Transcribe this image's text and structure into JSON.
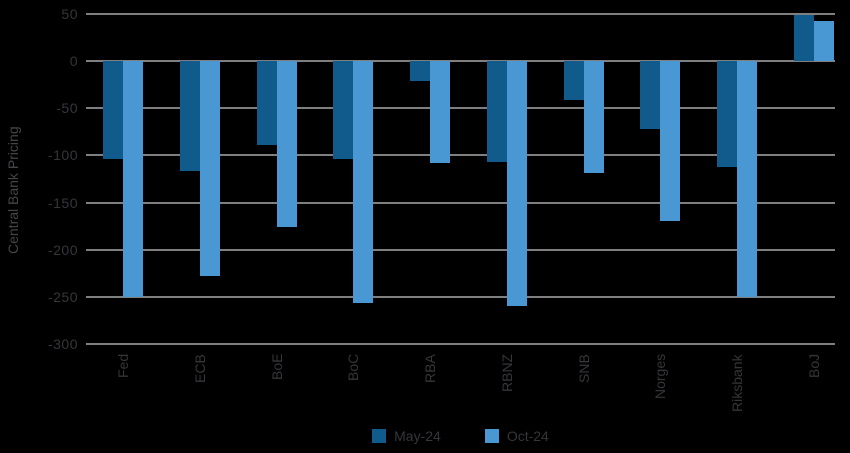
{
  "chart_data": {
    "type": "bar",
    "title": "",
    "xlabel": "",
    "ylabel": "Central Bank Pricing",
    "categories": [
      "Fed",
      "ECB",
      "BoE",
      "BoC",
      "RBA",
      "RBNZ",
      "SNB",
      "Norges",
      "Riksbank",
      "BoJ"
    ],
    "series": [
      {
        "name": "May-24",
        "color": "#115a8c",
        "values": [
          -104,
          -116,
          -89,
          -104,
          -21,
          -107,
          -41,
          -72,
          -112,
          49
        ]
      },
      {
        "name": "Oct-24",
        "color": "#4a98d3",
        "values": [
          -250,
          -228,
          -176,
          -257,
          -108,
          -260,
          -119,
          -170,
          -250,
          43
        ]
      }
    ],
    "yticks": [
      50,
      0,
      -50,
      -100,
      -150,
      -200,
      -250,
      -300
    ],
    "ylim": [
      -300,
      50
    ],
    "grid": true,
    "legend_position": "bottom",
    "colors": {
      "background": "#000000",
      "gridline": "#7f7f7f",
      "tick_text": "#35363a",
      "axis_title_text": "#44454a"
    }
  }
}
